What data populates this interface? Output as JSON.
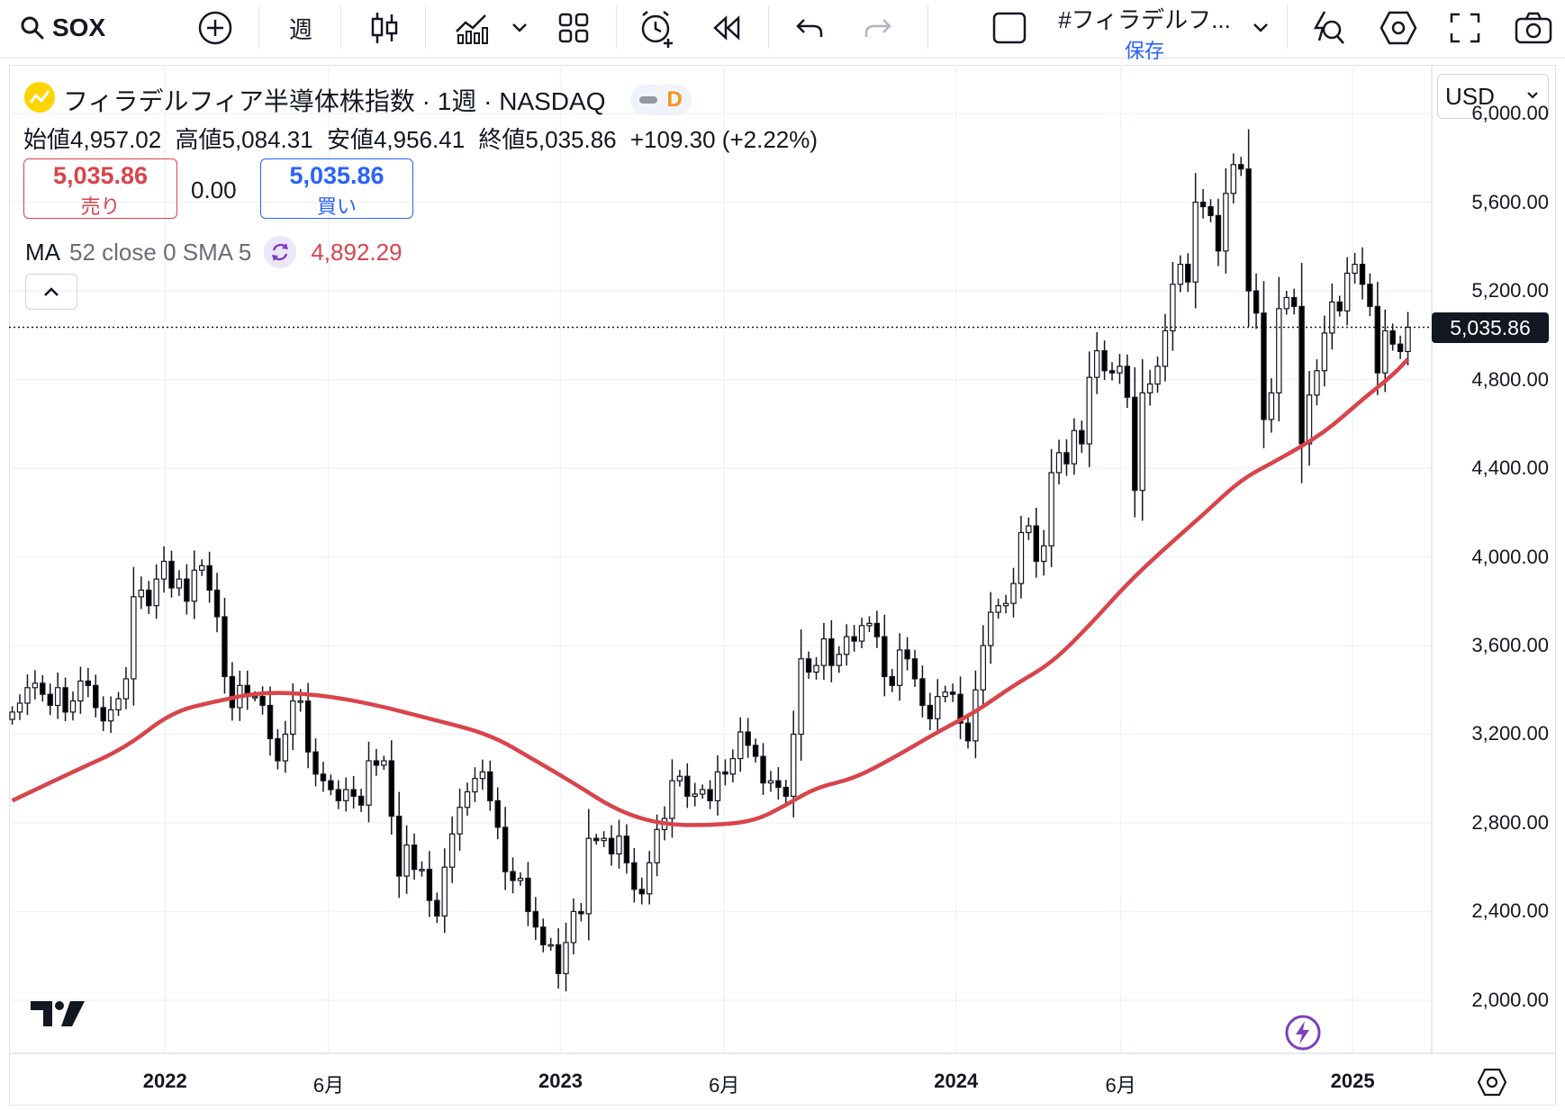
{
  "toolbar": {
    "symbol": "SOX",
    "interval": "週",
    "layout_name": "#フィラデルフ...",
    "save_label": "保存"
  },
  "legend": {
    "title": "フィラデルフィア半導体株指数 · 1週 · NASDAQ",
    "d_badge": "D",
    "open_label": "始値",
    "open": "4,957.02",
    "high_label": "高値",
    "high": "5,084.31",
    "low_label": "安値",
    "low": "4,956.41",
    "close_label": "終値",
    "close": "5,035.86",
    "change": "+109.30 (+2.22%)",
    "sell_price": "5,035.86",
    "sell_label": "売り",
    "spread": "0.00",
    "buy_price": "5,035.86",
    "buy_label": "買い",
    "ma_label": "MA",
    "ma_params": "52 close 0 SMA 5",
    "ma_value": "4,892.29",
    "collapse_icon": "chevron-up-icon"
  },
  "price_scale": {
    "currency": "USD",
    "current_price_label": "5,035.86"
  },
  "colors": {
    "ma_line": "#d9444b",
    "sell": "#d9444b",
    "buy": "#2962ff",
    "candle_up_fill": "#ffffff",
    "candle_down_fill": "#000000",
    "badge_orange": "#f7931a",
    "purple": "#7e3fbf"
  },
  "chart_data": {
    "type": "candlestick",
    "interval": "1週",
    "y_ticks": [
      "6,000.00",
      "5,600.00",
      "5,200.00",
      "4,800.00",
      "4,400.00",
      "4,000.00",
      "3,600.00",
      "3,200.00",
      "2,800.00",
      "2,400.00",
      "2,000.00"
    ],
    "y_tick_values": [
      6000,
      5600,
      5200,
      4800,
      4400,
      4000,
      3600,
      3200,
      2800,
      2400,
      2000
    ],
    "x_ticks": [
      {
        "label": "2022",
        "date": "2022-01-01",
        "bold": true
      },
      {
        "label": "6月",
        "date": "2022-06-01",
        "bold": false
      },
      {
        "label": "2023",
        "date": "2023-01-01",
        "bold": true
      },
      {
        "label": "6月",
        "date": "2023-06-01",
        "bold": false
      },
      {
        "label": "2024",
        "date": "2024-01-01",
        "bold": true
      },
      {
        "label": "6月",
        "date": "2024-06-01",
        "bold": false
      },
      {
        "label": "2025",
        "date": "2025-01-01",
        "bold": true
      }
    ],
    "ylim": [
      1760,
      6220
    ],
    "xlim": [
      "2021-08-10",
      "2025-03-15"
    ],
    "last_close": 5035.86,
    "closes": [
      {
        "date": "2021-08-13",
        "close": 3300
      },
      {
        "date": "2021-08-20",
        "close": 3340
      },
      {
        "date": "2021-08-27",
        "close": 3410
      },
      {
        "date": "2021-09-03",
        "close": 3430
      },
      {
        "date": "2021-09-10",
        "close": 3380
      },
      {
        "date": "2021-09-17",
        "close": 3330
      },
      {
        "date": "2021-09-24",
        "close": 3410
      },
      {
        "date": "2021-10-01",
        "close": 3300
      },
      {
        "date": "2021-10-08",
        "close": 3350
      },
      {
        "date": "2021-10-15",
        "close": 3440
      },
      {
        "date": "2021-10-22",
        "close": 3420
      },
      {
        "date": "2021-10-29",
        "close": 3320
      },
      {
        "date": "2021-11-05",
        "close": 3260
      },
      {
        "date": "2021-11-12",
        "close": 3310
      },
      {
        "date": "2021-11-19",
        "close": 3360
      },
      {
        "date": "2021-11-26",
        "close": 3450
      },
      {
        "date": "2021-12-03",
        "close": 3820
      },
      {
        "date": "2021-12-10",
        "close": 3850
      },
      {
        "date": "2021-12-17",
        "close": 3780
      },
      {
        "date": "2021-12-24",
        "close": 3900
      },
      {
        "date": "2021-12-31",
        "close": 3980
      },
      {
        "date": "2022-01-07",
        "close": 3860
      },
      {
        "date": "2022-01-14",
        "close": 3900
      },
      {
        "date": "2022-01-21",
        "close": 3800
      },
      {
        "date": "2022-01-28",
        "close": 3940
      },
      {
        "date": "2022-02-04",
        "close": 3960
      },
      {
        "date": "2022-02-11",
        "close": 3850
      },
      {
        "date": "2022-02-18",
        "close": 3730
      },
      {
        "date": "2022-02-25",
        "close": 3460
      },
      {
        "date": "2022-03-04",
        "close": 3320
      },
      {
        "date": "2022-03-11",
        "close": 3420
      },
      {
        "date": "2022-03-18",
        "close": 3370
      },
      {
        "date": "2022-03-25",
        "close": 3370
      },
      {
        "date": "2022-04-01",
        "close": 3330
      },
      {
        "date": "2022-04-08",
        "close": 3180
      },
      {
        "date": "2022-04-15",
        "close": 3080
      },
      {
        "date": "2022-04-22",
        "close": 3200
      },
      {
        "date": "2022-04-29",
        "close": 3350
      },
      {
        "date": "2022-05-06",
        "close": 3350
      },
      {
        "date": "2022-05-13",
        "close": 3120
      },
      {
        "date": "2022-05-20",
        "close": 3020
      },
      {
        "date": "2022-05-27",
        "close": 2990
      },
      {
        "date": "2022-06-03",
        "close": 2950
      },
      {
        "date": "2022-06-10",
        "close": 2900
      },
      {
        "date": "2022-06-17",
        "close": 2950
      },
      {
        "date": "2022-06-24",
        "close": 2920
      },
      {
        "date": "2022-07-01",
        "close": 2880
      },
      {
        "date": "2022-07-08",
        "close": 3080
      },
      {
        "date": "2022-07-15",
        "close": 3060
      },
      {
        "date": "2022-07-22",
        "close": 3080
      },
      {
        "date": "2022-07-29",
        "close": 2830
      },
      {
        "date": "2022-08-05",
        "close": 2560
      },
      {
        "date": "2022-08-12",
        "close": 2700
      },
      {
        "date": "2022-08-19",
        "close": 2590
      },
      {
        "date": "2022-08-26",
        "close": 2590
      },
      {
        "date": "2022-09-02",
        "close": 2450
      },
      {
        "date": "2022-09-09",
        "close": 2380
      },
      {
        "date": "2022-09-16",
        "close": 2600
      },
      {
        "date": "2022-09-23",
        "close": 2750
      },
      {
        "date": "2022-09-30",
        "close": 2870
      },
      {
        "date": "2022-10-07",
        "close": 2940
      },
      {
        "date": "2022-10-14",
        "close": 3000
      },
      {
        "date": "2022-10-21",
        "close": 3030
      },
      {
        "date": "2022-10-28",
        "close": 2900
      },
      {
        "date": "2022-11-04",
        "close": 2780
      },
      {
        "date": "2022-11-11",
        "close": 2580
      },
      {
        "date": "2022-11-18",
        "close": 2540
      },
      {
        "date": "2022-11-25",
        "close": 2550
      },
      {
        "date": "2022-12-02",
        "close": 2400
      },
      {
        "date": "2022-12-09",
        "close": 2330
      },
      {
        "date": "2022-12-16",
        "close": 2250
      },
      {
        "date": "2022-12-23",
        "close": 2250
      },
      {
        "date": "2022-12-30",
        "close": 2120
      },
      {
        "date": "2023-01-06",
        "close": 2260
      },
      {
        "date": "2023-01-13",
        "close": 2400
      },
      {
        "date": "2023-01-20",
        "close": 2390
      },
      {
        "date": "2023-01-27",
        "close": 2730
      },
      {
        "date": "2023-02-03",
        "close": 2720
      },
      {
        "date": "2023-02-10",
        "close": 2730
      },
      {
        "date": "2023-02-17",
        "close": 2660
      },
      {
        "date": "2023-02-24",
        "close": 2740
      },
      {
        "date": "2023-03-03",
        "close": 2620
      },
      {
        "date": "2023-03-10",
        "close": 2500
      },
      {
        "date": "2023-03-17",
        "close": 2480
      },
      {
        "date": "2023-03-24",
        "close": 2620
      },
      {
        "date": "2023-03-31",
        "close": 2770
      },
      {
        "date": "2023-04-07",
        "close": 2820
      },
      {
        "date": "2023-04-14",
        "close": 2990
      },
      {
        "date": "2023-04-21",
        "close": 3010
      },
      {
        "date": "2023-04-28",
        "close": 2920
      },
      {
        "date": "2023-05-05",
        "close": 2930
      },
      {
        "date": "2023-05-12",
        "close": 2950
      },
      {
        "date": "2023-05-19",
        "close": 2900
      },
      {
        "date": "2023-05-26",
        "close": 3030
      },
      {
        "date": "2023-06-02",
        "close": 3020
      },
      {
        "date": "2023-06-09",
        "close": 3090
      },
      {
        "date": "2023-06-16",
        "close": 3210
      },
      {
        "date": "2023-06-23",
        "close": 3150
      },
      {
        "date": "2023-06-30",
        "close": 3100
      },
      {
        "date": "2023-07-07",
        "close": 2980
      },
      {
        "date": "2023-07-14",
        "close": 2990
      },
      {
        "date": "2023-07-21",
        "close": 2960
      },
      {
        "date": "2023-07-28",
        "close": 2920
      },
      {
        "date": "2023-08-04",
        "close": 3200
      },
      {
        "date": "2023-08-11",
        "close": 3540
      },
      {
        "date": "2023-08-18",
        "close": 3480
      },
      {
        "date": "2023-08-25",
        "close": 3510
      },
      {
        "date": "2023-09-01",
        "close": 3630
      },
      {
        "date": "2023-09-08",
        "close": 3510
      },
      {
        "date": "2023-09-15",
        "close": 3560
      },
      {
        "date": "2023-09-22",
        "close": 3640
      },
      {
        "date": "2023-09-29",
        "close": 3620
      },
      {
        "date": "2023-10-06",
        "close": 3690
      },
      {
        "date": "2023-10-13",
        "close": 3700
      },
      {
        "date": "2023-10-20",
        "close": 3640
      },
      {
        "date": "2023-10-27",
        "close": 3460
      },
      {
        "date": "2023-11-03",
        "close": 3420
      },
      {
        "date": "2023-11-10",
        "close": 3580
      },
      {
        "date": "2023-11-17",
        "close": 3540
      },
      {
        "date": "2023-11-24",
        "close": 3450
      },
      {
        "date": "2023-12-01",
        "close": 3330
      },
      {
        "date": "2023-12-08",
        "close": 3270
      },
      {
        "date": "2023-12-15",
        "close": 3370
      },
      {
        "date": "2023-12-22",
        "close": 3390
      },
      {
        "date": "2023-12-29",
        "close": 3380
      },
      {
        "date": "2024-01-05",
        "close": 3250
      },
      {
        "date": "2024-01-12",
        "close": 3170
      },
      {
        "date": "2024-01-19",
        "close": 3400
      },
      {
        "date": "2024-01-26",
        "close": 3600
      },
      {
        "date": "2024-02-02",
        "close": 3750
      },
      {
        "date": "2024-02-09",
        "close": 3780
      },
      {
        "date": "2024-02-16",
        "close": 3790
      },
      {
        "date": "2024-02-23",
        "close": 3880
      },
      {
        "date": "2024-03-01",
        "close": 4110
      },
      {
        "date": "2024-03-08",
        "close": 4140
      },
      {
        "date": "2024-03-15",
        "close": 3980
      },
      {
        "date": "2024-03-22",
        "close": 4050
      },
      {
        "date": "2024-03-29",
        "close": 4380
      },
      {
        "date": "2024-04-05",
        "close": 4470
      },
      {
        "date": "2024-04-12",
        "close": 4420
      },
      {
        "date": "2024-04-19",
        "close": 4570
      },
      {
        "date": "2024-04-26",
        "close": 4510
      },
      {
        "date": "2024-05-03",
        "close": 4810
      },
      {
        "date": "2024-05-10",
        "close": 4930
      },
      {
        "date": "2024-05-17",
        "close": 4840
      },
      {
        "date": "2024-05-24",
        "close": 4830
      },
      {
        "date": "2024-05-31",
        "close": 4860
      },
      {
        "date": "2024-06-07",
        "close": 4720
      },
      {
        "date": "2024-06-14",
        "close": 4300
      },
      {
        "date": "2024-06-21",
        "close": 4740
      },
      {
        "date": "2024-06-28",
        "close": 4780
      },
      {
        "date": "2024-07-05",
        "close": 4860
      },
      {
        "date": "2024-07-12",
        "close": 5020
      },
      {
        "date": "2024-07-19",
        "close": 5230
      },
      {
        "date": "2024-07-26",
        "close": 5320
      },
      {
        "date": "2024-08-02",
        "close": 5240
      },
      {
        "date": "2024-08-09",
        "close": 5600
      },
      {
        "date": "2024-08-16",
        "close": 5580
      },
      {
        "date": "2024-08-23",
        "close": 5540
      },
      {
        "date": "2024-08-30",
        "close": 5380
      },
      {
        "date": "2024-09-06",
        "close": 5640
      },
      {
        "date": "2024-09-13",
        "close": 5770
      },
      {
        "date": "2024-09-20",
        "close": 5750
      },
      {
        "date": "2024-09-27",
        "close": 5200
      },
      {
        "date": "2024-10-04",
        "close": 5100
      },
      {
        "date": "2024-10-11",
        "close": 4620
      },
      {
        "date": "2024-10-18",
        "close": 4740
      },
      {
        "date": "2024-10-25",
        "close": 5120
      },
      {
        "date": "2024-11-01",
        "close": 5170
      },
      {
        "date": "2024-11-08",
        "close": 5130
      },
      {
        "date": "2024-11-15",
        "close": 4510
      },
      {
        "date": "2024-11-22",
        "close": 4730
      },
      {
        "date": "2024-11-29",
        "close": 4840
      },
      {
        "date": "2024-12-06",
        "close": 5010
      },
      {
        "date": "2024-12-13",
        "close": 5150
      },
      {
        "date": "2024-12-20",
        "close": 5110
      },
      {
        "date": "2024-12-27",
        "close": 5280
      },
      {
        "date": "2025-01-03",
        "close": 5320
      },
      {
        "date": "2025-01-10",
        "close": 5230
      },
      {
        "date": "2025-01-17",
        "close": 5130
      },
      {
        "date": "2025-01-24",
        "close": 4830
      },
      {
        "date": "2025-01-31",
        "close": 5020
      },
      {
        "date": "2025-02-07",
        "close": 4960
      },
      {
        "date": "2025-02-14",
        "close": 4926.56
      },
      {
        "date": "2025-02-21",
        "close": 5035.86
      }
    ],
    "ma_series": {
      "name": "MA 52 close 0 SMA 5",
      "points": [
        {
          "date": "2021-08-13",
          "value": 2900
        },
        {
          "date": "2021-10-08",
          "value": 3030
        },
        {
          "date": "2021-11-26",
          "value": 3140
        },
        {
          "date": "2022-01-07",
          "value": 3300
        },
        {
          "date": "2022-02-18",
          "value": 3350
        },
        {
          "date": "2022-03-31",
          "value": 3390
        },
        {
          "date": "2022-05-20",
          "value": 3380
        },
        {
          "date": "2022-07-08",
          "value": 3340
        },
        {
          "date": "2022-09-02",
          "value": 3270
        },
        {
          "date": "2022-10-28",
          "value": 3200
        },
        {
          "date": "2022-12-09",
          "value": 3080
        },
        {
          "date": "2023-01-13",
          "value": 2980
        },
        {
          "date": "2023-02-24",
          "value": 2850
        },
        {
          "date": "2023-04-07",
          "value": 2790
        },
        {
          "date": "2023-05-26",
          "value": 2790
        },
        {
          "date": "2023-06-30",
          "value": 2810
        },
        {
          "date": "2023-07-28",
          "value": 2880
        },
        {
          "date": "2023-08-25",
          "value": 2960
        },
        {
          "date": "2023-09-29",
          "value": 3000
        },
        {
          "date": "2023-11-03",
          "value": 3090
        },
        {
          "date": "2023-12-15",
          "value": 3210
        },
        {
          "date": "2024-01-19",
          "value": 3300
        },
        {
          "date": "2024-02-23",
          "value": 3420
        },
        {
          "date": "2024-03-29",
          "value": 3520
        },
        {
          "date": "2024-05-03",
          "value": 3690
        },
        {
          "date": "2024-06-07",
          "value": 3880
        },
        {
          "date": "2024-07-12",
          "value": 4040
        },
        {
          "date": "2024-08-16",
          "value": 4190
        },
        {
          "date": "2024-09-20",
          "value": 4350
        },
        {
          "date": "2024-10-25",
          "value": 4440
        },
        {
          "date": "2024-12-06",
          "value": 4560
        },
        {
          "date": "2025-01-10",
          "value": 4710
        },
        {
          "date": "2025-02-07",
          "value": 4820
        },
        {
          "date": "2025-02-21",
          "value": 4892.29
        }
      ]
    }
  }
}
